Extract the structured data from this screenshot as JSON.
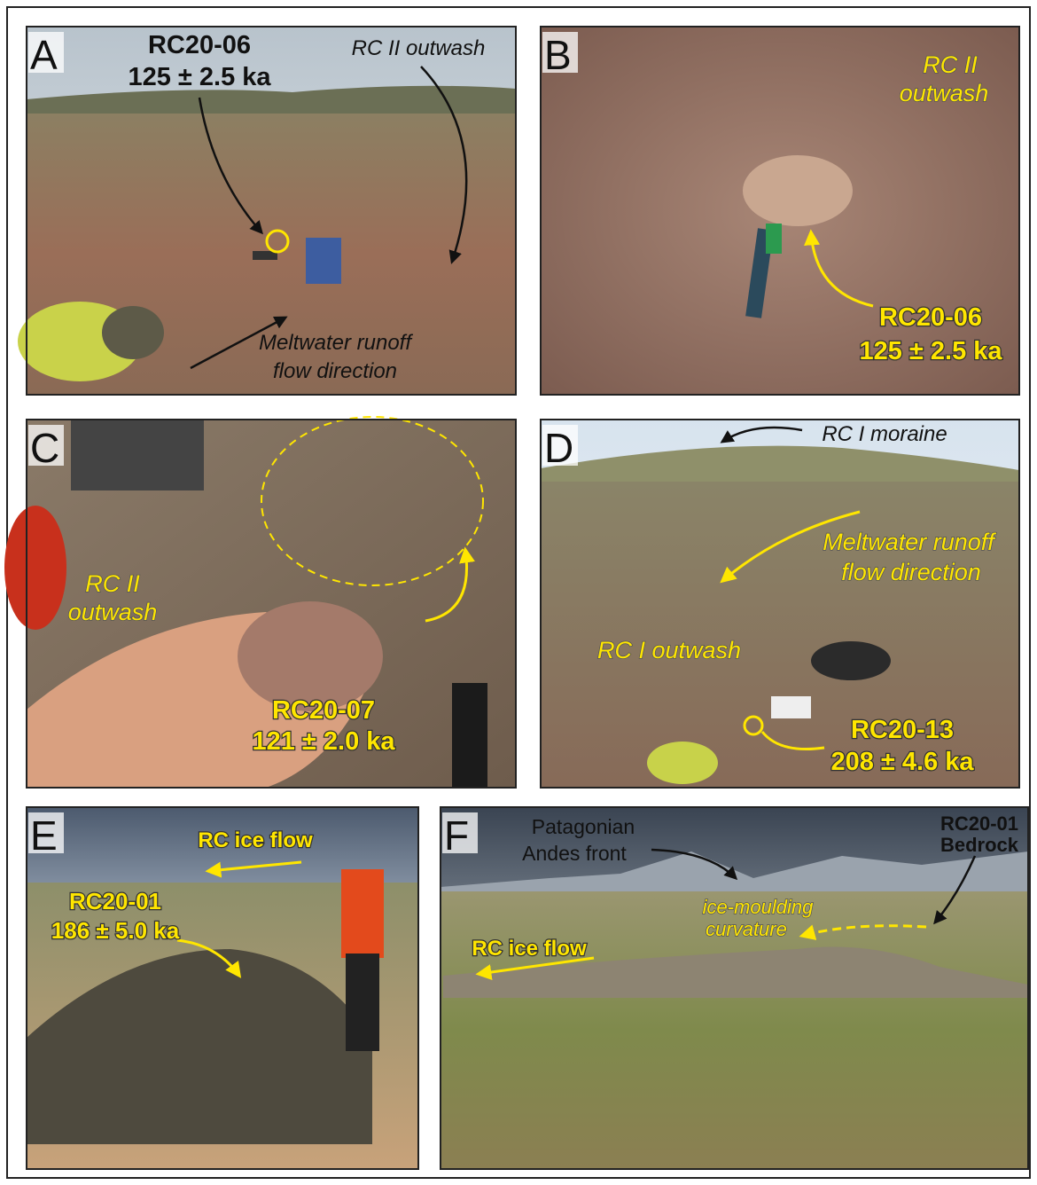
{
  "panels": [
    {
      "letter": "A",
      "labels": [
        "RC20-06",
        "125 ± 2.5 ka",
        "RC II outwash",
        "Meltwater runoff",
        "flow direction"
      ]
    },
    {
      "letter": "B",
      "labels": [
        "RC II",
        "outwash",
        "RC20-06",
        "125 ± 2.5 ka"
      ]
    },
    {
      "letter": "C",
      "labels": [
        "RC II",
        "outwash",
        "RC20-07",
        "121 ± 2.0 ka"
      ]
    },
    {
      "letter": "D",
      "labels": [
        "RC I moraine",
        "Meltwater runoff",
        "flow direction",
        "RC I outwash",
        "RC20-13",
        "208 ± 4.6 ka"
      ]
    },
    {
      "letter": "E",
      "labels": [
        "RC ice flow",
        "RC20-01",
        "186 ± 5.0 ka"
      ]
    },
    {
      "letter": "F",
      "labels": [
        "Patagonian",
        "Andes front",
        "RC20-01",
        "Bedrock",
        "ice-moulding",
        "curvature",
        "RC ice flow"
      ]
    }
  ]
}
